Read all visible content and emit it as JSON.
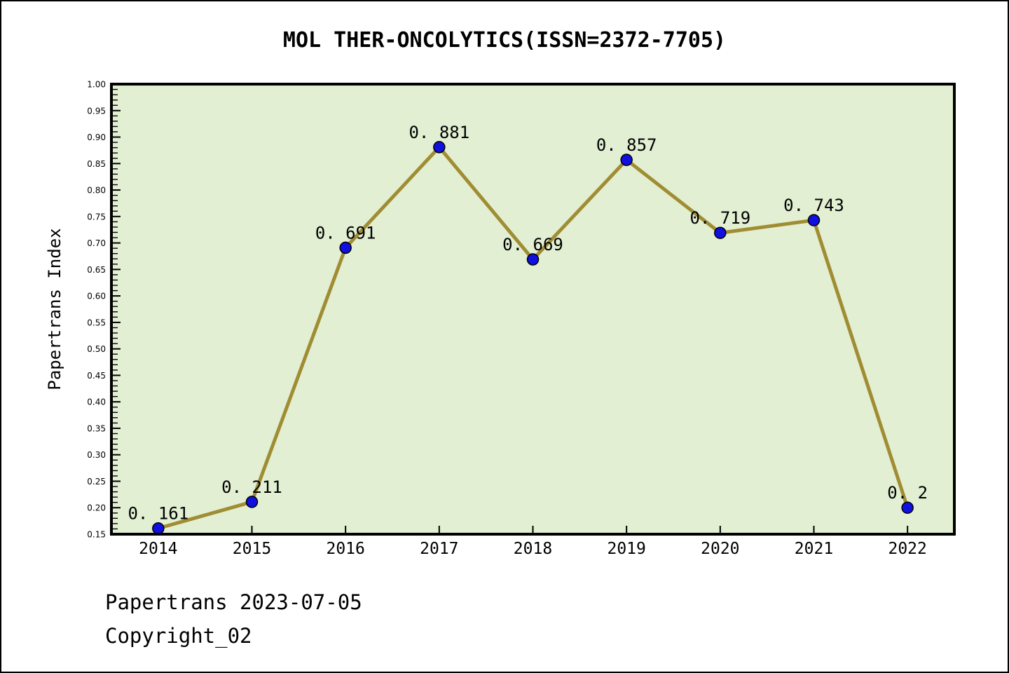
{
  "title": "MOL THER-ONCOLYTICS(ISSN=2372-7705)",
  "ylabel": "Papertrans Index",
  "footer": {
    "line1": "Papertrans 2023-07-05",
    "line2": "Copyright_02"
  },
  "colors": {
    "page_background": "#ffffff",
    "plot_background": "#e2efd2",
    "line": "#a08d33",
    "marker": "#1010e0",
    "marker_edge": "#000000",
    "frame": "#000000",
    "text": "#000000"
  },
  "chart_data": {
    "type": "line",
    "title": "MOL THER-ONCOLYTICS(ISSN=2372-7705)",
    "xlabel": "",
    "ylabel": "Papertrans Index",
    "categories": [
      "2014",
      "2015",
      "2016",
      "2017",
      "2018",
      "2019",
      "2020",
      "2021",
      "2022"
    ],
    "values": [
      0.161,
      0.211,
      0.691,
      0.881,
      0.669,
      0.857,
      0.719,
      0.743,
      0.2
    ],
    "point_labels": [
      "0. 161",
      "0. 211",
      "0. 691",
      "0. 881",
      "0. 669",
      "0. 857",
      "0. 719",
      "0. 743",
      "0. 2"
    ],
    "series": [
      {
        "name": "Papertrans Index",
        "values": [
          0.161,
          0.211,
          0.691,
          0.881,
          0.669,
          0.857,
          0.719,
          0.743,
          0.2
        ]
      }
    ],
    "ylim": [
      0.15,
      1.0
    ],
    "y_major_step": 0.05,
    "y_minor_step": 0.01,
    "y_tick_decimals": 2,
    "grid": false,
    "legend": false,
    "marker": "circle",
    "annotations": [
      "values shown above each point"
    ]
  }
}
